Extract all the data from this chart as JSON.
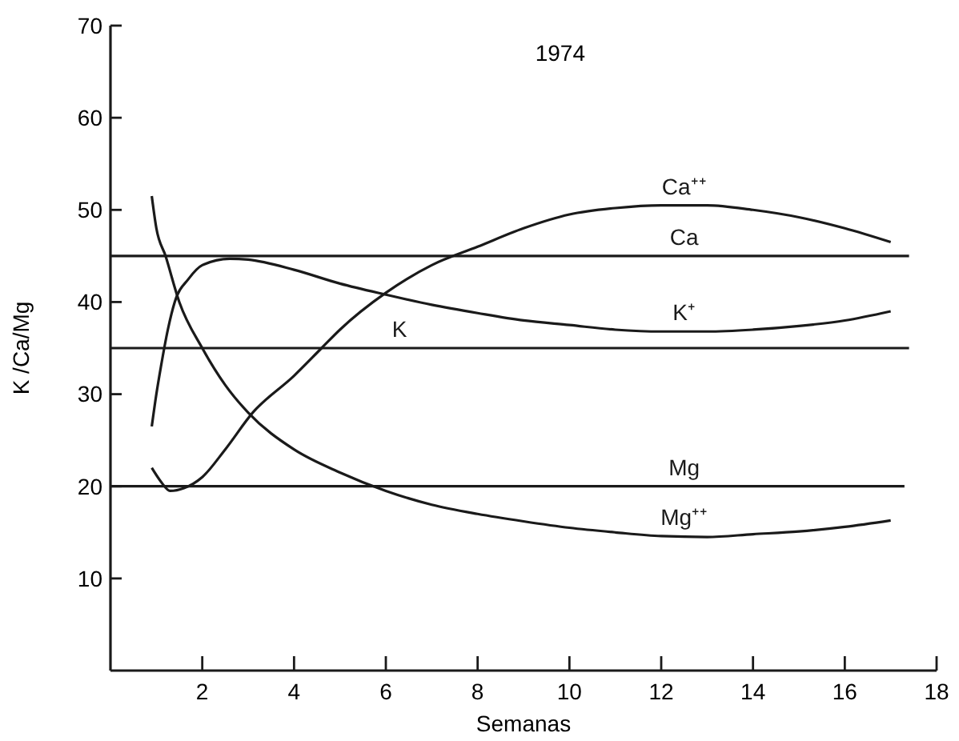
{
  "chart_data": {
    "type": "line",
    "title": "1974",
    "xlabel": "Semanas",
    "ylabel": "K /Ca/Mg",
    "xlim": [
      0,
      18
    ],
    "ylim": [
      0,
      70
    ],
    "xticks": [
      2,
      4,
      6,
      8,
      10,
      12,
      14,
      16,
      18
    ],
    "yticks": [
      10,
      20,
      30,
      40,
      50,
      60,
      70
    ],
    "grid": false,
    "marker": "none",
    "line_style": "solid",
    "series": [
      {
        "name": "Ca⁺⁺",
        "color": "#1a1a1a",
        "x": [
          0.9,
          1.1,
          1.3,
          1.6,
          2,
          2.5,
          3.1,
          4,
          4.6,
          5,
          6,
          7,
          8,
          9,
          10,
          11,
          12,
          13,
          14,
          15,
          16,
          17
        ],
        "values": [
          22,
          20.5,
          19.5,
          19.8,
          21,
          24,
          28,
          32,
          35,
          37,
          41,
          44,
          46,
          48,
          49.5,
          50.2,
          50.5,
          50.5,
          50,
          49.2,
          48,
          46.5
        ]
      },
      {
        "name": "Ca",
        "color": "#1a1a1a",
        "x": [
          0,
          17.4
        ],
        "values": [
          45,
          45
        ]
      },
      {
        "name": "K⁺",
        "color": "#1a1a1a",
        "x": [
          0.9,
          1,
          1.1,
          1.25,
          1.4,
          1.7,
          2,
          2.6,
          3,
          4,
          5,
          6,
          7,
          8,
          9,
          10,
          11,
          12,
          13,
          14,
          15,
          16,
          17
        ],
        "values": [
          26.5,
          30,
          33,
          37,
          40,
          42.5,
          44,
          44.7,
          44.6,
          43.5,
          42,
          40.8,
          39.7,
          38.8,
          38,
          37.5,
          37,
          36.8,
          36.8,
          37,
          37.4,
          38,
          39
        ]
      },
      {
        "name": "K",
        "color": "#1a1a1a",
        "x": [
          0,
          17.4
        ],
        "values": [
          35,
          35
        ]
      },
      {
        "name": "Mg",
        "color": "#1a1a1a",
        "x": [
          0,
          17.3
        ],
        "values": [
          20,
          20
        ]
      },
      {
        "name": "Mg⁺⁺",
        "color": "#1a1a1a",
        "x": [
          0.9,
          1,
          1.2,
          1.5,
          2,
          2.5,
          3,
          4,
          5,
          6,
          7,
          8,
          9,
          10,
          11,
          12,
          13,
          14,
          15,
          16,
          17
        ],
        "values": [
          51.5,
          48,
          45,
          40,
          35,
          31,
          28,
          24,
          21.5,
          19.5,
          18,
          17,
          16.2,
          15.5,
          15,
          14.6,
          14.5,
          14.8,
          15.1,
          15.6,
          16.3
        ]
      }
    ]
  }
}
